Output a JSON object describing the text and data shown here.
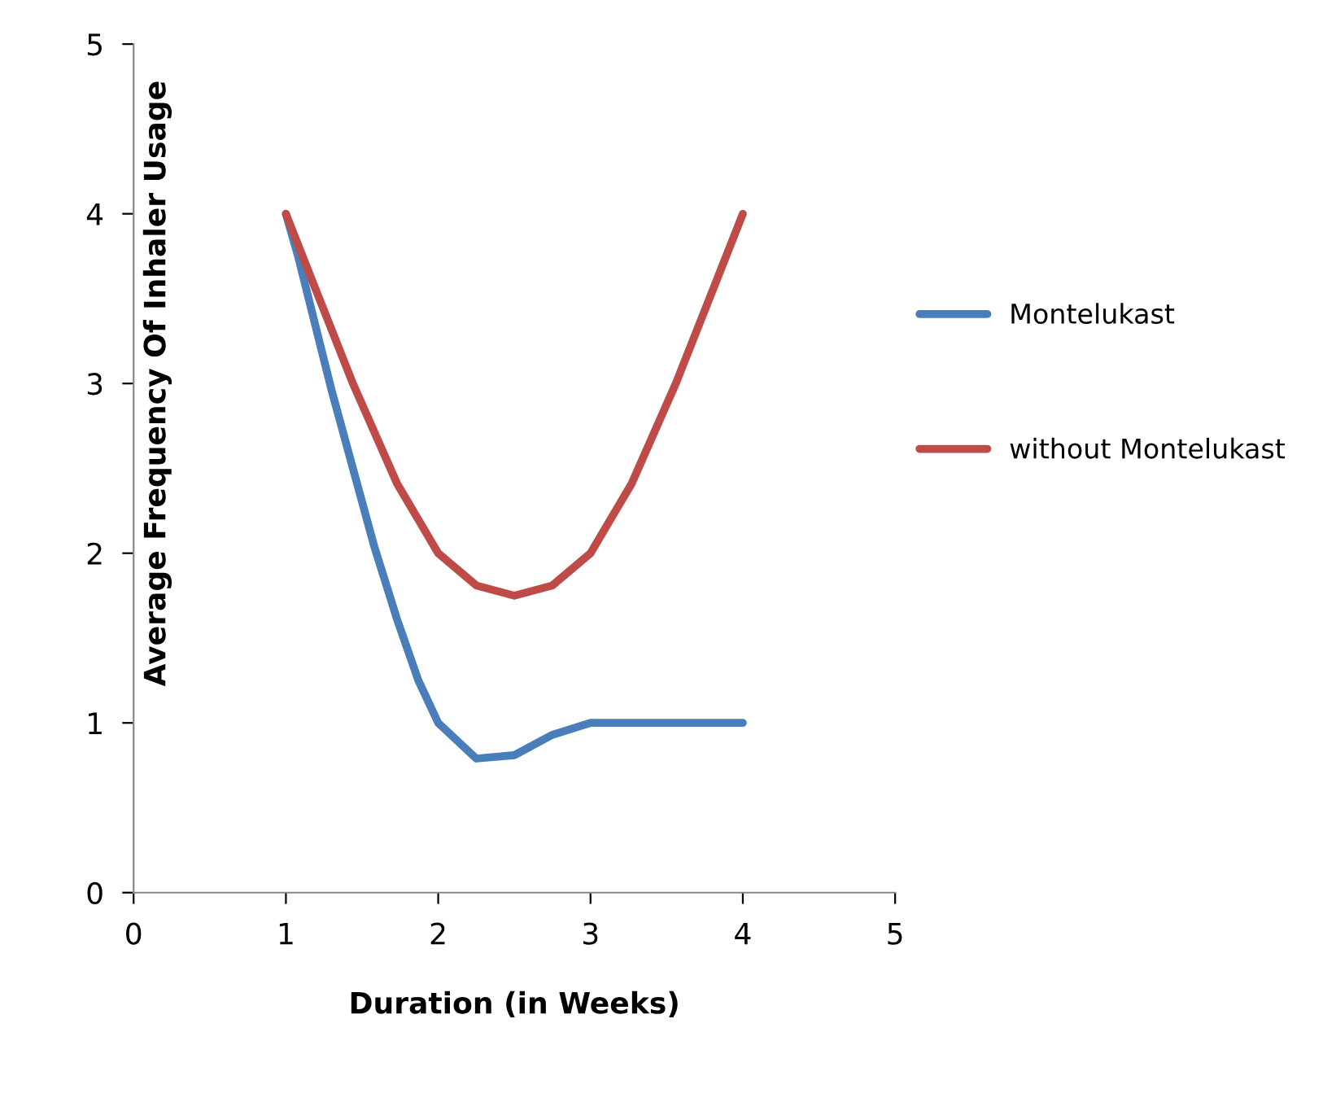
{
  "chart_data": {
    "type": "line",
    "xlabel": "Duration (in Weeks)",
    "ylabel": "Average Frequency Of Inhaler Usage",
    "series": [
      {
        "name": "Montelukast",
        "color": "#4a7ebb",
        "x": [
          1,
          1.08,
          1.18,
          1.3,
          1.44,
          1.58,
          1.73,
          1.87,
          2,
          2.25,
          2.5,
          2.75,
          3,
          4
        ],
        "values": [
          4,
          3.75,
          3.39,
          2.96,
          2.5,
          2.04,
          1.61,
          1.25,
          1,
          0.79,
          0.81,
          0.93,
          1,
          1
        ]
      },
      {
        "name": "without Montelukast",
        "color": "#be4b48",
        "x": [
          1,
          1.18,
          1.44,
          1.73,
          2,
          2.25,
          2.5,
          2.75,
          3,
          3.27,
          3.56,
          3.82,
          4
        ],
        "values": [
          4,
          3.59,
          3,
          2.41,
          2,
          1.81,
          1.75,
          1.81,
          2,
          2.41,
          3,
          3.59,
          4
        ]
      }
    ],
    "xlim": [
      0,
      5
    ],
    "ylim": [
      0,
      5
    ],
    "xticks": [
      0,
      1,
      2,
      3,
      4,
      5
    ],
    "yticks": [
      0,
      1,
      2,
      3,
      4,
      5
    ],
    "grid": false,
    "legend": "right",
    "marker": "none",
    "line_style": "solid"
  }
}
